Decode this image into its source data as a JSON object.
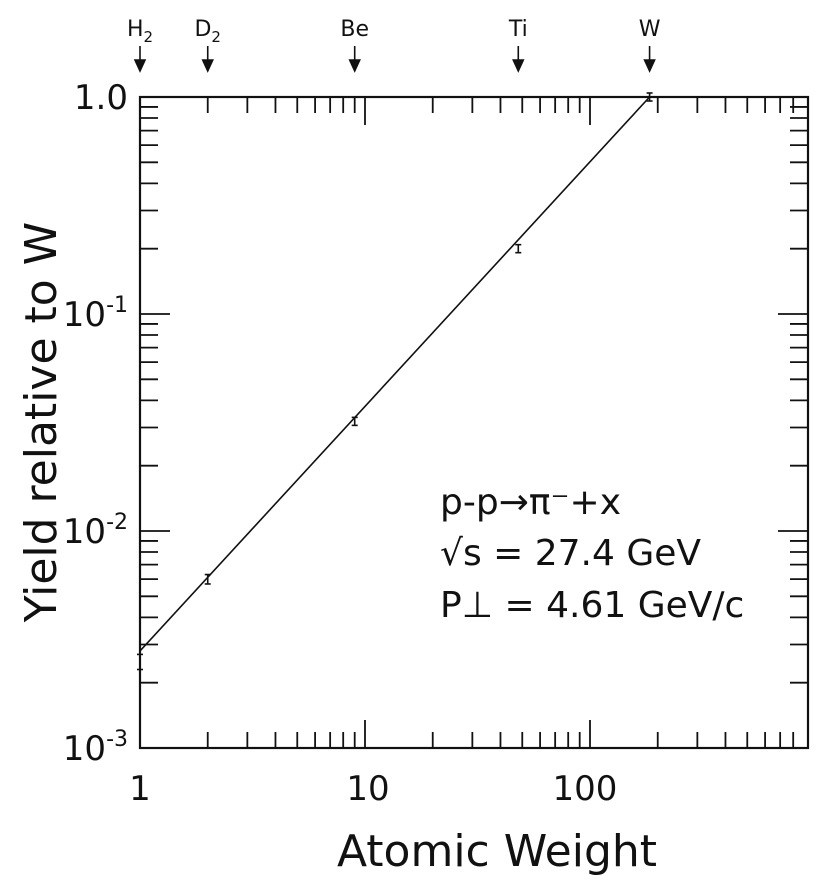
{
  "chart_data": {
    "type": "scatter",
    "xscale": "log",
    "yscale": "log",
    "xlabel": "Atomic Weight",
    "ylabel": "Yield relative to W",
    "xlim": [
      1,
      800
    ],
    "ylim": [
      0.001,
      1.0
    ],
    "x_tick_labels": [
      "1",
      "10",
      "100"
    ],
    "y_tick_labels": [
      {
        "value": 1.0,
        "base": "1.0",
        "exp": ""
      },
      {
        "value": 0.1,
        "base": "10",
        "exp": "-1"
      },
      {
        "value": 0.01,
        "base": "10",
        "exp": "-2"
      },
      {
        "value": 0.001,
        "base": "10",
        "exp": "-3"
      }
    ],
    "targets": [
      {
        "label": "H",
        "sub": "2",
        "x": 1.0
      },
      {
        "label": "D",
        "sub": "2",
        "x": 2.0
      },
      {
        "label": "Be",
        "sub": "",
        "x": 9.0
      },
      {
        "label": "Ti",
        "sub": "",
        "x": 48.0
      },
      {
        "label": "W",
        "sub": "",
        "x": 184.0
      }
    ],
    "points": [
      {
        "x": 1.0,
        "y": 0.0025,
        "err": 0.0002
      },
      {
        "x": 2.0,
        "y": 0.006,
        "err": 0.0003
      },
      {
        "x": 9.0,
        "y": 0.032,
        "err": 0.0012
      },
      {
        "x": 48.0,
        "y": 0.2,
        "err": 0.008
      },
      {
        "x": 184.0,
        "y": 1.0,
        "err": 0.03
      }
    ],
    "fit_line": [
      [
        1.0,
        0.0028
      ],
      [
        184.0,
        1.0
      ]
    ],
    "annotation": {
      "reaction": "p-p→π⁻+x",
      "energy": "√s = 27.4 GeV",
      "momentum": "P⊥ = 4.61 GeV/c"
    }
  }
}
